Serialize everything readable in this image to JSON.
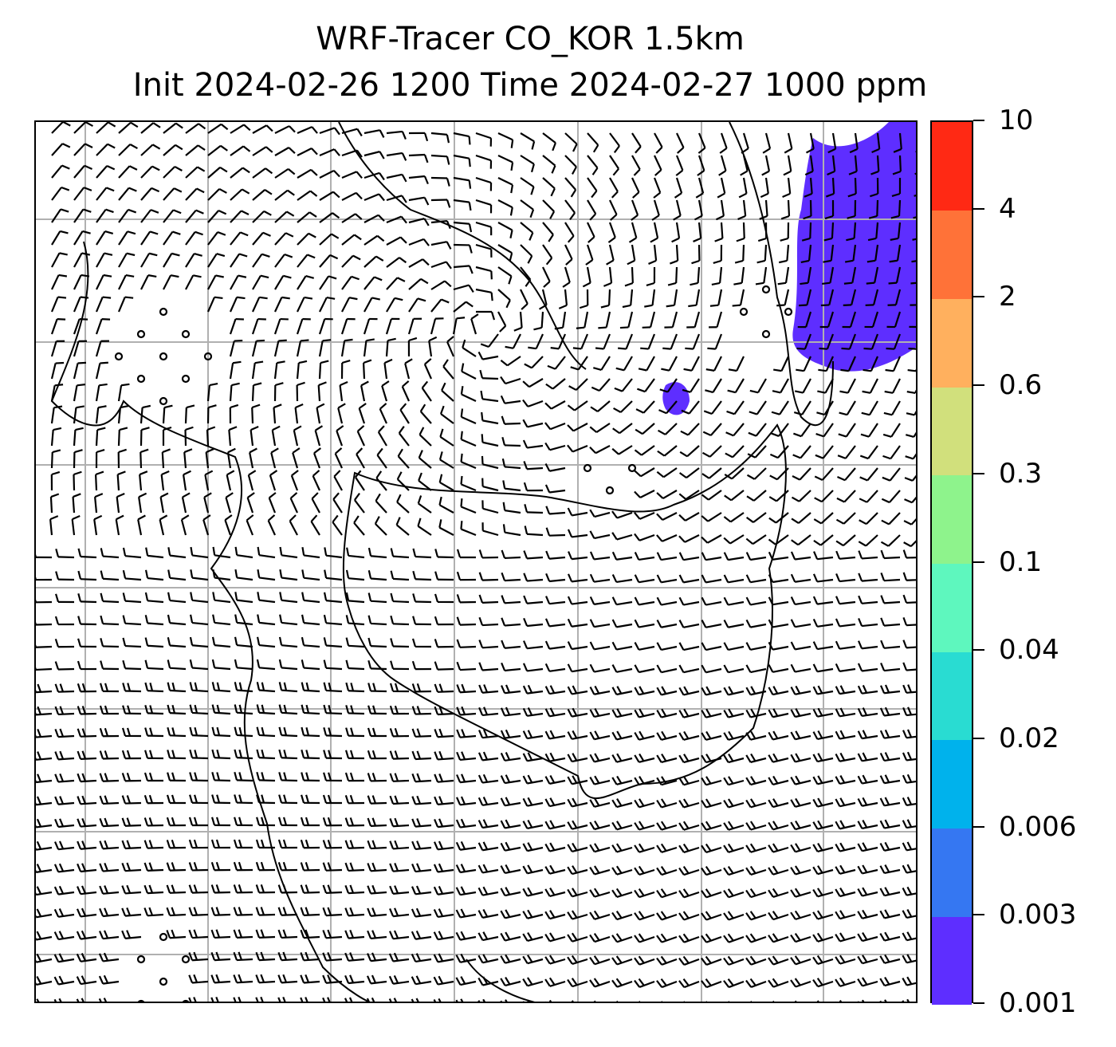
{
  "title": {
    "line1": "WRF-Tracer CO_KOR 1.5km",
    "line2": "Init 2024-02-26 1200 Time 2024-02-27 1000 ppm"
  },
  "colorbar": {
    "levels": [
      "0.001",
      "0.003",
      "0.006",
      "0.02",
      "0.04",
      "0.1",
      "0.3",
      "0.6",
      "2",
      "4",
      "10"
    ],
    "colors": [
      "#5e2eff",
      "#3577f2",
      "#00b2ec",
      "#29dcd2",
      "#5ef7be",
      "#8ef38c",
      "#d1e07c",
      "#ffb05e",
      "#ff7238",
      "#ff2914"
    ]
  },
  "map": {
    "tracer_color": "#5e2eff",
    "gridline_color": "#b0b0b0",
    "overlay": "wind barbs"
  }
}
